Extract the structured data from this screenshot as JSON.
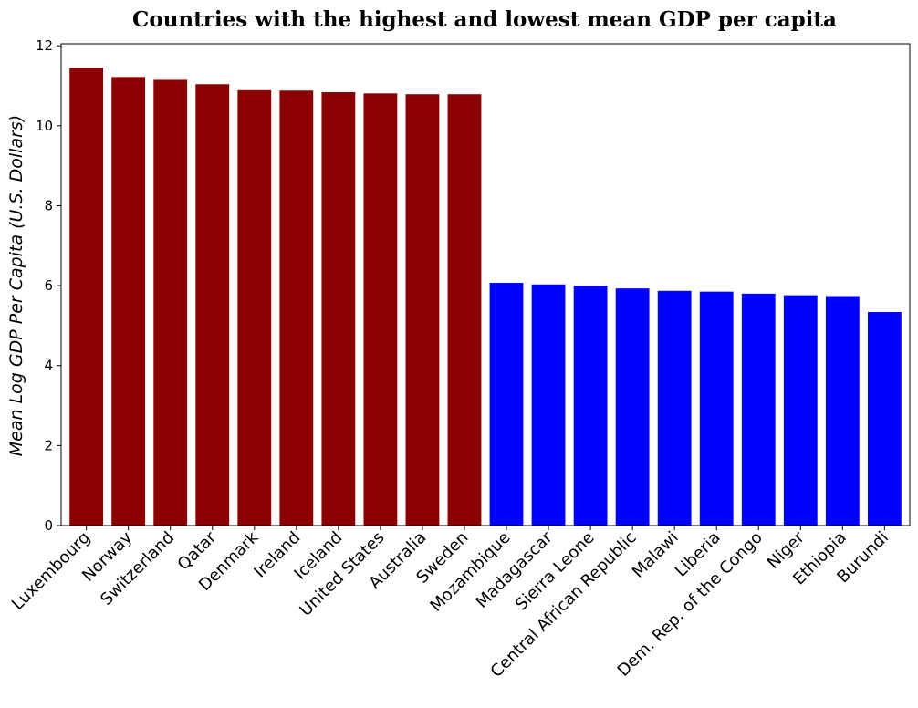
{
  "chart_data": {
    "type": "bar",
    "title": "Countries with the highest and lowest mean GDP per capita",
    "xlabel": "",
    "ylabel": "Mean Log GDP Per Capita (U.S. Dollars)",
    "ylim": [
      0,
      12.05
    ],
    "yticks": [
      0,
      2,
      4,
      6,
      8,
      10,
      12
    ],
    "grid": false,
    "legend": false,
    "categories": [
      "Luxembourg",
      "Norway",
      "Switzerland",
      "Qatar",
      "Denmark",
      "Ireland",
      "Iceland",
      "United States",
      "Australia",
      "Sweden",
      "Mozambique",
      "Madagascar",
      "Sierra Leone",
      "Central African Republic",
      "Malawi",
      "Liberia",
      "Dem. Rep. of the Congo",
      "Niger",
      "Ethiopia",
      "Burundi"
    ],
    "values": [
      11.45,
      11.22,
      11.15,
      11.04,
      10.89,
      10.88,
      10.84,
      10.81,
      10.79,
      10.79,
      6.07,
      6.03,
      6.0,
      5.93,
      5.87,
      5.85,
      5.8,
      5.76,
      5.74,
      5.34
    ],
    "groups": [
      {
        "label": "highest",
        "color": "#8b0000",
        "count": 10
      },
      {
        "label": "lowest",
        "color": "#0000ff",
        "count": 10
      }
    ]
  }
}
